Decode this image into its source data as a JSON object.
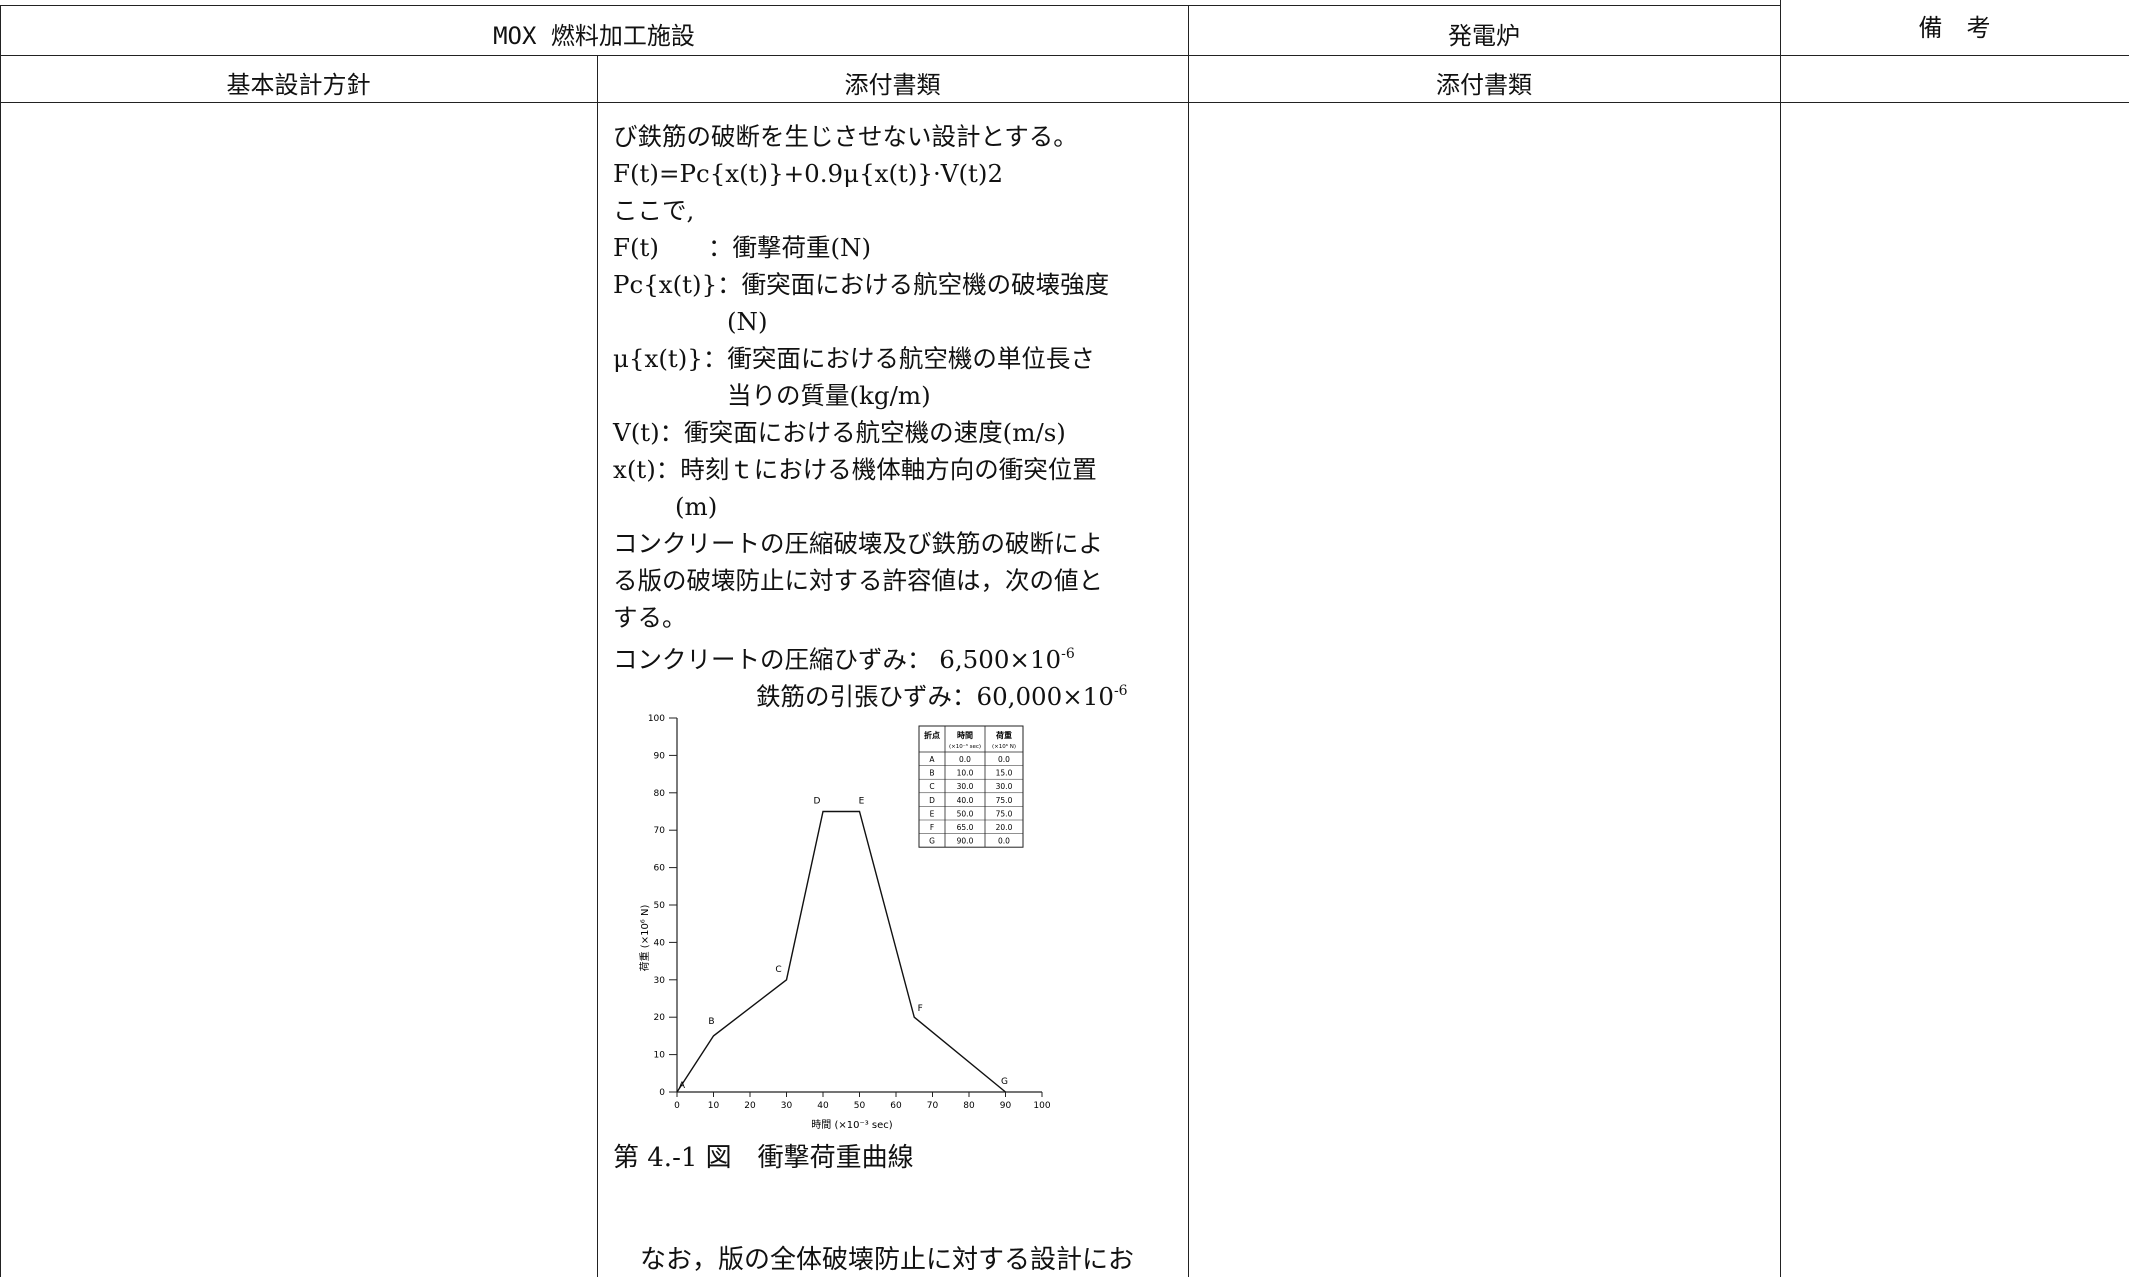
{
  "headers": {
    "facility": "MOX 燃料加工施設",
    "power_reactor": "発電炉",
    "remarks": "備　考",
    "basic_policy": "基本設計方針",
    "attached_docs_1": "添付書類",
    "attached_docs_2": "添付書類"
  },
  "body": {
    "l1": "び鉄筋の破断を生じさせない設計とする。",
    "l2": "F(t)=Pc{x(t)}+0.9μ{x(t)}·V(t)2",
    "l3": "ここで,",
    "l4": "F(t)　　：衝撃荷重(N)",
    "l5": "Pc{x(t)}：衝突面における航空機の破壊強度",
    "l6": "(N)",
    "l7": "μ{x(t)}：衝突面における航空機の単位長さ",
    "l8": "当りの質量(kg/m)",
    "l9": "V(t)：衝突面における航空機の速度(m/s)",
    "l10": "x(t)：時刻ｔにおける機体軸方向の衝突位置",
    "l11": "(m)",
    "l12": "コンクリートの圧縮破壊及び鉄筋の破断によ",
    "l13": "る版の破壊防止に対する許容値は，次の値と",
    "l14": "する。",
    "l15": "コンクリートの圧縮ひずみ： 6,500×10",
    "l15_exp": "-6",
    "l16": "鉄筋の引張ひずみ：60,000×10",
    "l16_exp": "-6"
  },
  "caption": "第 4.-1 図　衝撃荷重曲線",
  "bottom_text": "なお，版の全体破壊防止に対する設計にお",
  "chart_data": {
    "type": "line",
    "xlabel": "時間 (×10⁻³ sec)",
    "ylabel": "荷重 (×10⁶ N)",
    "xlim": [
      0,
      100
    ],
    "ylim": [
      0,
      100
    ],
    "xticks": [
      0,
      10,
      20,
      30,
      40,
      50,
      60,
      70,
      80,
      90,
      100
    ],
    "yticks": [
      0,
      10,
      20,
      30,
      40,
      50,
      60,
      70,
      80,
      90,
      100
    ],
    "points": [
      {
        "label": "A",
        "x": 0.0,
        "y": 0.0
      },
      {
        "label": "B",
        "x": 10.0,
        "y": 15.0
      },
      {
        "label": "C",
        "x": 30.0,
        "y": 30.0
      },
      {
        "label": "D",
        "x": 40.0,
        "y": 75.0
      },
      {
        "label": "E",
        "x": 50.0,
        "y": 75.0
      },
      {
        "label": "F",
        "x": 65.0,
        "y": 20.0
      },
      {
        "label": "G",
        "x": 90.0,
        "y": 0.0
      }
    ],
    "table": {
      "headers": [
        "折点",
        "時間",
        "荷重"
      ],
      "subheaders": [
        "",
        "(×10⁻³ sec)",
        "(×10⁶ N)"
      ]
    }
  }
}
